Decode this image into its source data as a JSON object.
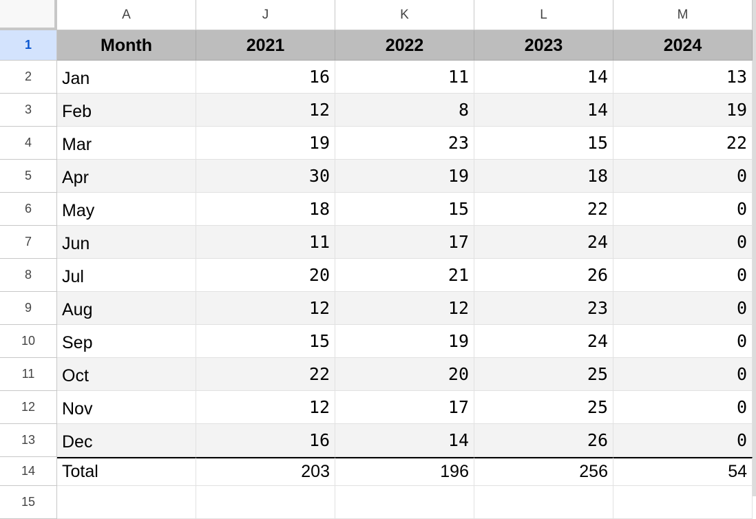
{
  "column_headers": [
    "A",
    "J",
    "K",
    "L",
    "M"
  ],
  "row_numbers": [
    1,
    2,
    3,
    4,
    5,
    6,
    7,
    8,
    9,
    10,
    11,
    12,
    13,
    14,
    15
  ],
  "table": {
    "header": [
      "Month",
      "2021",
      "2022",
      "2023",
      "2024"
    ],
    "rows": [
      [
        "Jan",
        16,
        11,
        14,
        13
      ],
      [
        "Feb",
        12,
        8,
        14,
        19
      ],
      [
        "Mar",
        19,
        23,
        15,
        22
      ],
      [
        "Apr",
        30,
        19,
        18,
        0
      ],
      [
        "May",
        18,
        15,
        22,
        0
      ],
      [
        "Jun",
        11,
        17,
        24,
        0
      ],
      [
        "Jul",
        20,
        21,
        26,
        0
      ],
      [
        "Aug",
        12,
        12,
        23,
        0
      ],
      [
        "Sep",
        15,
        19,
        24,
        0
      ],
      [
        "Oct",
        22,
        20,
        25,
        0
      ],
      [
        "Nov",
        12,
        17,
        25,
        0
      ],
      [
        "Dec",
        16,
        14,
        26,
        0
      ]
    ],
    "total": [
      "Total",
      203,
      196,
      256,
      54
    ]
  }
}
